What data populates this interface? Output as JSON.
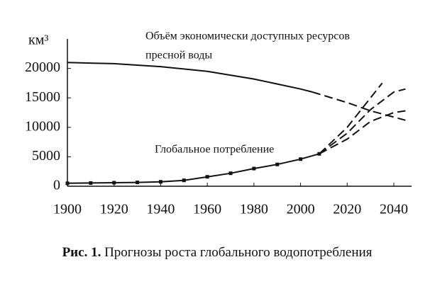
{
  "chart_data": {
    "type": "line",
    "y_label": "км³",
    "caption_label": "Рис. 1.",
    "caption": "Прогнозы роста глобального водопотребления",
    "annotations": [
      "Объём экономически доступных ресурсов",
      "пресной воды",
      "Глобальное потребление"
    ],
    "xlim": [
      1900,
      2047
    ],
    "ylim": [
      0,
      25000
    ],
    "xticks": [
      1900,
      1920,
      1940,
      1960,
      1980,
      2000,
      2020,
      2040
    ],
    "yticks": [
      0,
      5000,
      10000,
      15000,
      20000
    ],
    "color": "#111111",
    "series": [
      {
        "x": [
          1900,
          1920,
          1940,
          1960,
          1980,
          2000,
          2005
        ],
        "values": [
          21000,
          20800,
          20300,
          19500,
          18200,
          16500,
          16000
        ],
        "dashed": false,
        "markers": false
      },
      {
        "x": [
          2005,
          2020,
          2030,
          2045
        ],
        "values": [
          16000,
          14200,
          12800,
          11200
        ],
        "dashed": true,
        "markers": false
      },
      {
        "x": [
          1900,
          1910,
          1920,
          1930,
          1940,
          1950,
          1960,
          1970,
          1980,
          1990,
          2000,
          2008
        ],
        "values": [
          500,
          550,
          600,
          650,
          750,
          1000,
          1600,
          2200,
          3000,
          3700,
          4600,
          5500
        ],
        "dashed": false,
        "markers": true
      },
      {
        "x": [
          2008,
          2020,
          2030,
          2035
        ],
        "values": [
          5500,
          10000,
          15000,
          17500
        ],
        "dashed": true,
        "markers": false
      },
      {
        "x": [
          2008,
          2020,
          2030,
          2040,
          2045
        ],
        "values": [
          5500,
          9000,
          13000,
          16000,
          16500
        ],
        "dashed": true,
        "markers": false
      },
      {
        "x": [
          2008,
          2020,
          2030,
          2040,
          2045
        ],
        "values": [
          5500,
          8000,
          11000,
          12500,
          12800
        ],
        "dashed": true,
        "markers": false
      }
    ]
  }
}
